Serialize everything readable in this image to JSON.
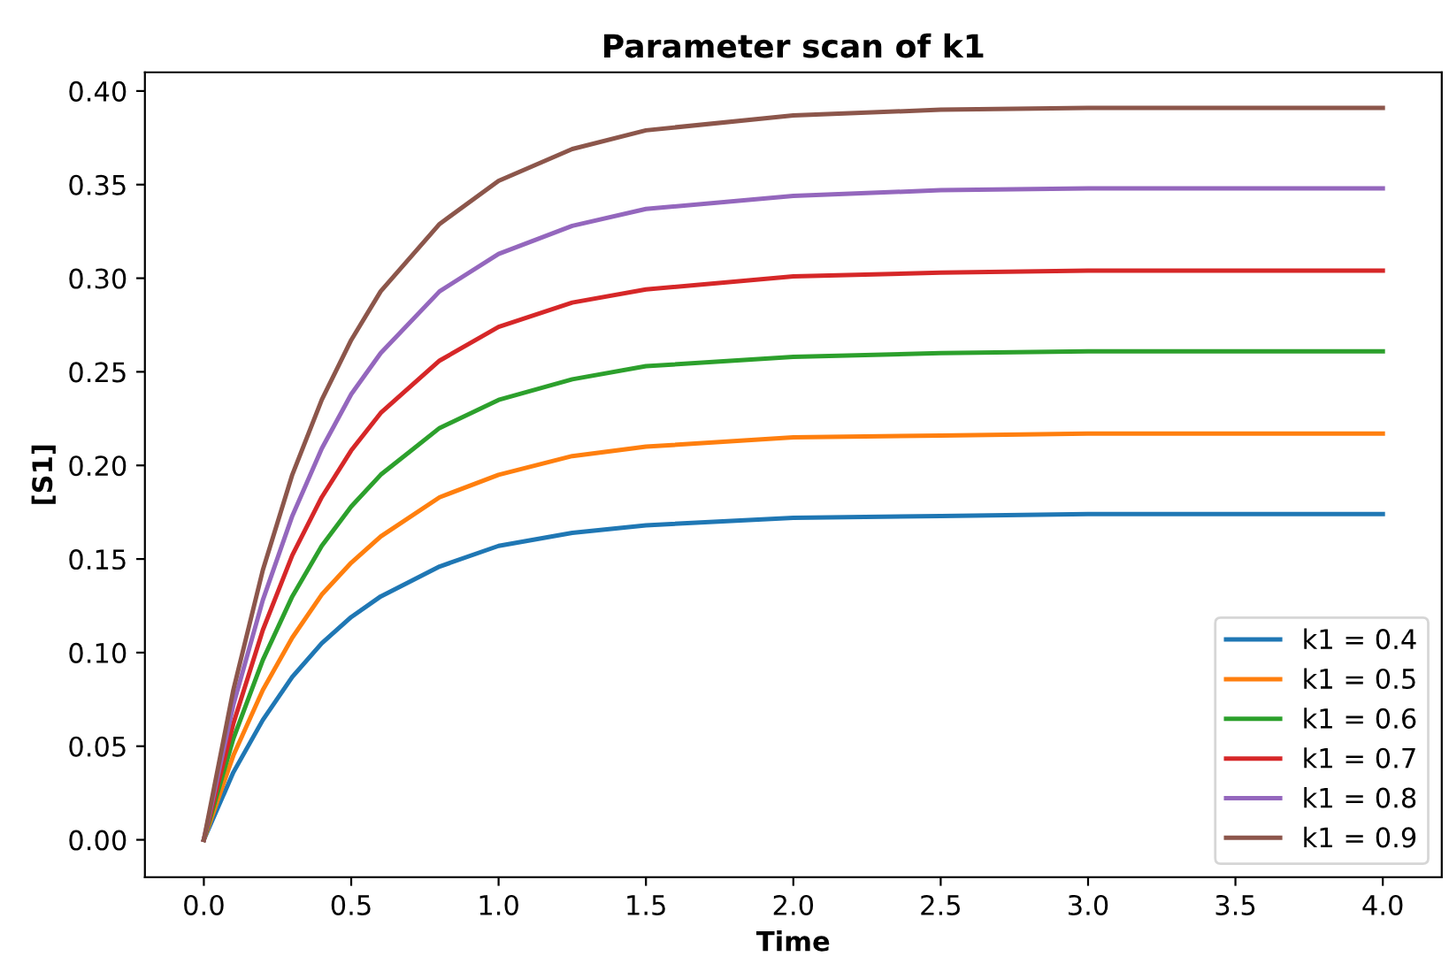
{
  "chart_data": {
    "type": "line",
    "title": "Parameter scan of k1",
    "xlabel": "Time",
    "ylabel": "[S1]",
    "x": [
      0,
      0.1,
      0.2,
      0.3,
      0.4,
      0.5,
      0.6,
      0.8,
      1.0,
      1.25,
      1.5,
      2.0,
      2.5,
      3.0,
      4.0
    ],
    "series": [
      {
        "name": "k1 = 0.4",
        "color": "#1f77b4",
        "values": [
          0,
          0.036,
          0.064,
          0.087,
          0.105,
          0.119,
          0.13,
          0.146,
          0.157,
          0.164,
          0.168,
          0.172,
          0.173,
          0.174,
          0.174
        ]
      },
      {
        "name": "k1 = 0.5",
        "color": "#ff7f0e",
        "values": [
          0,
          0.045,
          0.08,
          0.108,
          0.131,
          0.148,
          0.162,
          0.183,
          0.195,
          0.205,
          0.21,
          0.215,
          0.216,
          0.217,
          0.217
        ]
      },
      {
        "name": "k1 = 0.6",
        "color": "#2ca02c",
        "values": [
          0,
          0.054,
          0.096,
          0.13,
          0.157,
          0.178,
          0.195,
          0.22,
          0.235,
          0.246,
          0.253,
          0.258,
          0.26,
          0.261,
          0.261
        ]
      },
      {
        "name": "k1 = 0.7",
        "color": "#d62728",
        "values": [
          0,
          0.062,
          0.112,
          0.152,
          0.183,
          0.208,
          0.228,
          0.256,
          0.274,
          0.287,
          0.294,
          0.301,
          0.303,
          0.304,
          0.304
        ]
      },
      {
        "name": "k1 = 0.8",
        "color": "#9467bd",
        "values": [
          0,
          0.072,
          0.128,
          0.173,
          0.209,
          0.238,
          0.26,
          0.293,
          0.313,
          0.328,
          0.337,
          0.344,
          0.347,
          0.348,
          0.348
        ]
      },
      {
        "name": "k1 = 0.9",
        "color": "#8c564b",
        "values": [
          0,
          0.08,
          0.144,
          0.195,
          0.235,
          0.267,
          0.293,
          0.329,
          0.352,
          0.369,
          0.379,
          0.387,
          0.39,
          0.391,
          0.391
        ]
      }
    ],
    "xlim": [
      -0.2,
      4.2
    ],
    "xticks": [
      {
        "value": 0,
        "label": "0.0"
      },
      0.5,
      {
        "value": 1,
        "label": "1.0"
      },
      1.5,
      {
        "value": 2,
        "label": "2.0"
      },
      2.5,
      {
        "value": 3,
        "label": "3.0"
      },
      3.5,
      {
        "value": 4,
        "label": "4.0"
      }
    ],
    "ylim": [
      -0.02,
      0.41
    ],
    "yticks": [
      {
        "value": 0,
        "label": "0.00"
      },
      0.05,
      {
        "value": 0.1,
        "label": "0.10"
      },
      0.15,
      {
        "value": 0.2,
        "label": "0.20"
      },
      0.25,
      {
        "value": 0.3,
        "label": "0.30"
      },
      0.35,
      {
        "value": 0.4,
        "label": "0.40"
      }
    ],
    "grid": false,
    "legend": "lower right"
  }
}
